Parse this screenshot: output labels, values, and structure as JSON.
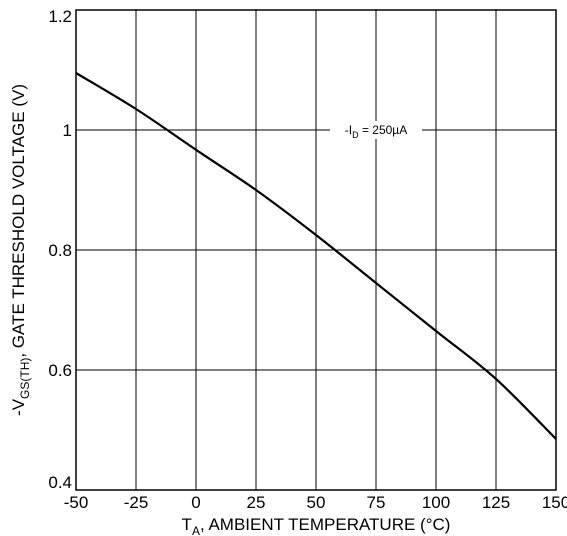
{
  "chart_data": {
    "type": "line",
    "xlabel_main": "T",
    "xlabel_sub": "A",
    "xlabel_rest": ", AMBIENT TEMPERATURE (°C)",
    "ylabel_main": "-V",
    "ylabel_sub": "GS(TH)",
    "ylabel_rest": ", GATE THRESHOLD VOLTAGE (V)",
    "xlim": [
      -50,
      150
    ],
    "ylim": [
      0.4,
      1.2
    ],
    "x_ticks": [
      -50,
      -25,
      0,
      25,
      50,
      75,
      100,
      125,
      150
    ],
    "x_tick_labels": [
      "-50",
      "-25",
      "0",
      "25",
      "50",
      "75",
      "100",
      "125",
      "150"
    ],
    "y_ticks": [
      0.4,
      0.6,
      0.8,
      1.0,
      1.2
    ],
    "y_tick_labels": [
      "0.4",
      "0.6",
      "0.8",
      "1",
      "1.2"
    ],
    "grid": true,
    "annotation": {
      "main": "-I",
      "sub": "D",
      "rest": " = 250µA",
      "x": 75,
      "y": 1.0
    },
    "series": [
      {
        "color": "#000000",
        "x": [
          -50,
          -25,
          0,
          25,
          50,
          75,
          100,
          125,
          150
        ],
        "y": [
          1.095,
          1.035,
          0.967,
          0.9,
          0.825,
          0.745,
          0.665,
          0.585,
          0.485
        ]
      }
    ]
  }
}
